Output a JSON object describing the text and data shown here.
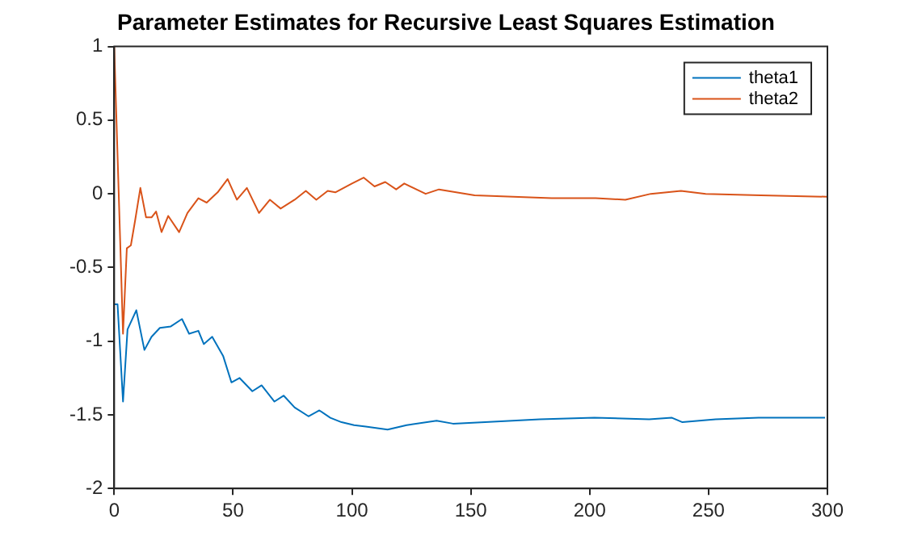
{
  "chart_data": {
    "type": "line",
    "title": "Parameter Estimates for Recursive Least Squares Estimation",
    "xlim": [
      0,
      300
    ],
    "xticks": [
      0,
      50,
      100,
      150,
      200,
      250,
      300
    ],
    "ylim": [
      -2,
      1
    ],
    "yticks": [
      -2,
      -1.5,
      -1,
      -0.5,
      0,
      0.5,
      1
    ],
    "grid": false,
    "legend": "top right",
    "marker": "none",
    "line_style": "solid",
    "series": [
      {
        "name": "theta1",
        "color": "#0072bd",
        "x": [
          0,
          1.4,
          3.7,
          5.6,
          9.3,
          12.7,
          15.7,
          19.2,
          23.8,
          28.5,
          31.5,
          35.4,
          37.7,
          41.2,
          45.8,
          49.3,
          52.7,
          58.1,
          62,
          67.4,
          71.3,
          75.9,
          81.7,
          86.3,
          90.9,
          95.6,
          100.9,
          105.8,
          115,
          123,
          135.6,
          142.5,
          156,
          179,
          202,
          225,
          234.6,
          239,
          253,
          271,
          299
        ],
        "values": [
          -0.75,
          -0.75,
          -1.41,
          -0.92,
          -0.79,
          -1.06,
          -0.97,
          -0.91,
          -0.9,
          -0.85,
          -0.95,
          -0.93,
          -1.02,
          -0.97,
          -1.1,
          -1.28,
          -1.25,
          -1.34,
          -1.3,
          -1.41,
          -1.37,
          -1.45,
          -1.51,
          -1.47,
          -1.52,
          -1.55,
          -1.57,
          -1.58,
          -1.6,
          -1.57,
          -1.54,
          -1.56,
          -1.55,
          -1.53,
          -1.52,
          -1.53,
          -1.52,
          -1.55,
          -1.53,
          -1.52,
          -1.52
        ]
      },
      {
        "name": "theta2",
        "color": "#d95319",
        "x": [
          0,
          3.7,
          5.3,
          7,
          8.8,
          11,
          13.4,
          15.7,
          17.6,
          19.9,
          22.7,
          27.3,
          30.8,
          35.4,
          38.9,
          43.5,
          47.7,
          51.6,
          55.8,
          60.9,
          65.5,
          70,
          75.9,
          80.6,
          85,
          89.8,
          93,
          100,
          104.9,
          109.5,
          114,
          118.6,
          122,
          131,
          136.6,
          151.6,
          167.8,
          184,
          202.5,
          215,
          225.7,
          238.4,
          248.8,
          272,
          299.8
        ],
        "values": [
          1,
          -0.95,
          -0.37,
          -0.35,
          -0.18,
          0.04,
          -0.16,
          -0.16,
          -0.12,
          -0.26,
          -0.15,
          -0.26,
          -0.13,
          -0.03,
          -0.06,
          0.01,
          0.1,
          -0.04,
          0.04,
          -0.13,
          -0.04,
          -0.1,
          -0.04,
          0.02,
          -0.04,
          0.02,
          0.01,
          0.07,
          0.11,
          0.05,
          0.08,
          0.03,
          0.07,
          0,
          0.03,
          -0.01,
          -0.02,
          -0.03,
          -0.03,
          -0.04,
          0,
          0.02,
          0,
          -0.01,
          -0.02
        ]
      }
    ]
  }
}
